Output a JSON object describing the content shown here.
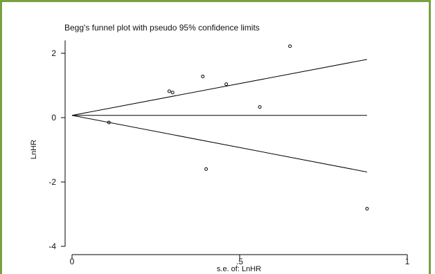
{
  "chart_data": {
    "type": "scatter",
    "title": "Begg's funnel plot with pseudo 95% confidence limits",
    "xlabel": "s.e. of: LnHR",
    "ylabel": "LnHR",
    "xlim": [
      0,
      1
    ],
    "ylim": [
      -4,
      2.4
    ],
    "x_ticks": [
      0,
      0.5,
      1
    ],
    "x_tick_labels": [
      "0",
      ".5",
      "1"
    ],
    "y_ticks": [
      -4,
      -2,
      0,
      2
    ],
    "y_tick_labels": [
      "-4",
      "-2",
      "0",
      "2"
    ],
    "grid": false,
    "pooled_estimate": 0.07,
    "confidence_limit_lines": [
      {
        "x": [
          0,
          0.88
        ],
        "y": [
          0.07,
          1.81
        ]
      },
      {
        "x": [
          0,
          0.88
        ],
        "y": [
          0.07,
          -1.69
        ]
      }
    ],
    "reference_line": {
      "x": [
        0,
        0.88
      ],
      "y": [
        0.07,
        0.07
      ]
    },
    "points": [
      {
        "x": 0.11,
        "y": -0.15
      },
      {
        "x": 0.29,
        "y": 0.82
      },
      {
        "x": 0.3,
        "y": 0.78
      },
      {
        "x": 0.39,
        "y": 1.28
      },
      {
        "x": 0.4,
        "y": -1.6
      },
      {
        "x": 0.46,
        "y": 1.04
      },
      {
        "x": 0.56,
        "y": 0.33
      },
      {
        "x": 0.65,
        "y": 2.22
      },
      {
        "x": 0.88,
        "y": -2.83
      }
    ]
  }
}
